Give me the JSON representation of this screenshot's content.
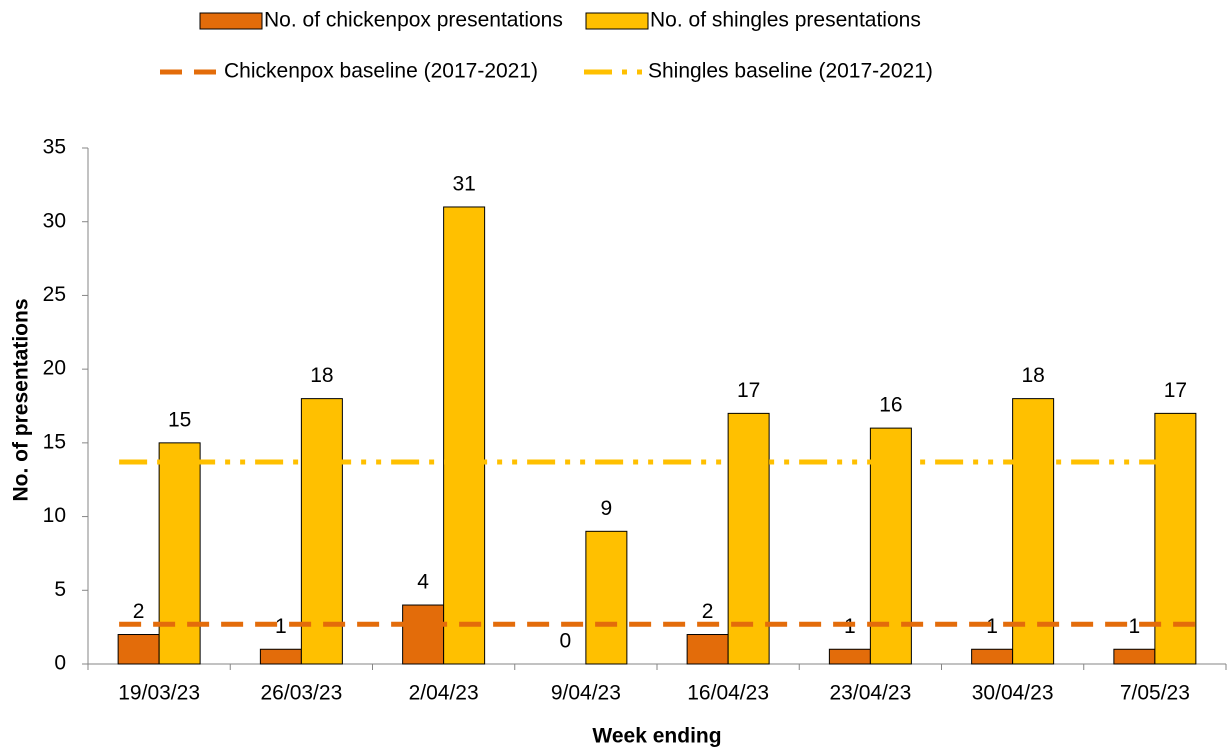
{
  "chart_data": {
    "type": "bar",
    "x_label": "Week ending",
    "y_label": "No. of presentations",
    "categories": [
      "19/03/23",
      "26/03/23",
      "2/04/23",
      "9/04/23",
      "16/04/23",
      "23/04/23",
      "30/04/23",
      "7/05/23"
    ],
    "series": [
      {
        "name": "No. of chickenpox presentations",
        "type": "bar",
        "color": "#e36c0a",
        "values": [
          2,
          1,
          4,
          0,
          2,
          1,
          1,
          1
        ]
      },
      {
        "name": "No. of shingles presentations",
        "type": "bar",
        "color": "#ffc000",
        "values": [
          15,
          18,
          31,
          9,
          17,
          16,
          18,
          17
        ]
      },
      {
        "name": "Chickenpox baseline (2017-2021)",
        "type": "line",
        "dash": "dash",
        "color": "#e36c0a",
        "values": [
          2.7,
          2.7,
          2.7,
          2.7,
          2.7,
          2.7,
          2.7,
          2.7
        ]
      },
      {
        "name": "Shingles baseline (2017-2021)",
        "type": "line",
        "dash": "dash-dot-dot",
        "color": "#ffc000",
        "values": [
          13.7,
          13.7,
          13.7,
          13.7,
          13.7,
          13.7,
          13.7,
          13.7
        ]
      }
    ],
    "ylim": [
      0,
      35
    ],
    "yticks": [
      0,
      5,
      10,
      15,
      20,
      25,
      30,
      35
    ],
    "grid": false,
    "legend": "top"
  }
}
